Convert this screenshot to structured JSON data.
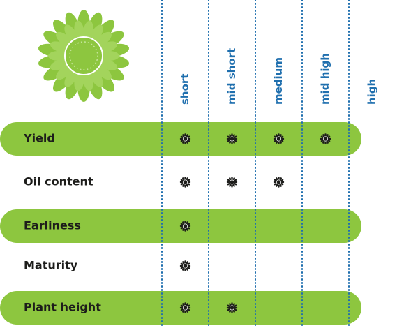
{
  "columns": [
    "short",
    "mid short",
    "medium",
    "mid high",
    "high"
  ],
  "rows": [
    {
      "label": "Yield",
      "cells": [
        true,
        true,
        true,
        true,
        false
      ]
    },
    {
      "label": "Oil content",
      "cells": [
        true,
        true,
        true,
        false,
        false
      ]
    },
    {
      "label": "Earliness",
      "cells": [
        true,
        false,
        false,
        false,
        false
      ]
    },
    {
      "label": "Maturity",
      "cells": [
        true,
        false,
        false,
        false,
        false
      ]
    },
    {
      "label": "Plant height",
      "cells": [
        true,
        true,
        false,
        false,
        false
      ]
    }
  ]
}
